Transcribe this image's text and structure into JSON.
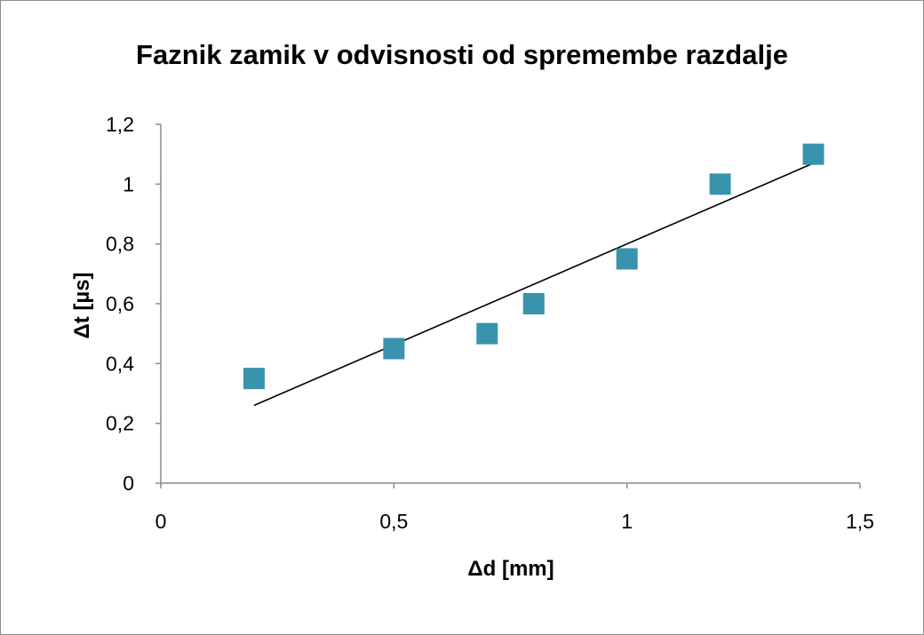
{
  "chart_data": {
    "type": "scatter",
    "title": "Faznik zamik v odvisnosti od spremembe razdalje",
    "xlabel": "Δd [mm]",
    "ylabel": "Δt [µs]",
    "xlim": [
      0,
      1.5
    ],
    "ylim": [
      0,
      1.2
    ],
    "x_ticks": [
      "0",
      "0,5",
      "1",
      "1,5"
    ],
    "y_ticks": [
      "0",
      "0,2",
      "0,4",
      "0,6",
      "0,8",
      "1",
      "1,2"
    ],
    "grid": false,
    "legend": "none",
    "marker_color": "#3a93ad",
    "series": [
      {
        "points": [
          {
            "x": 0.2,
            "y": 0.35
          },
          {
            "x": 0.5,
            "y": 0.45
          },
          {
            "x": 0.7,
            "y": 0.5
          },
          {
            "x": 0.8,
            "y": 0.6
          },
          {
            "x": 1.0,
            "y": 0.75
          },
          {
            "x": 1.2,
            "y": 1.0
          },
          {
            "x": 1.4,
            "y": 1.1
          }
        ]
      }
    ],
    "trendline": {
      "type": "linear",
      "color": "#000000",
      "points": [
        {
          "x": 0.2,
          "y": 0.26
        },
        {
          "x": 1.4,
          "y": 1.07
        }
      ]
    }
  }
}
